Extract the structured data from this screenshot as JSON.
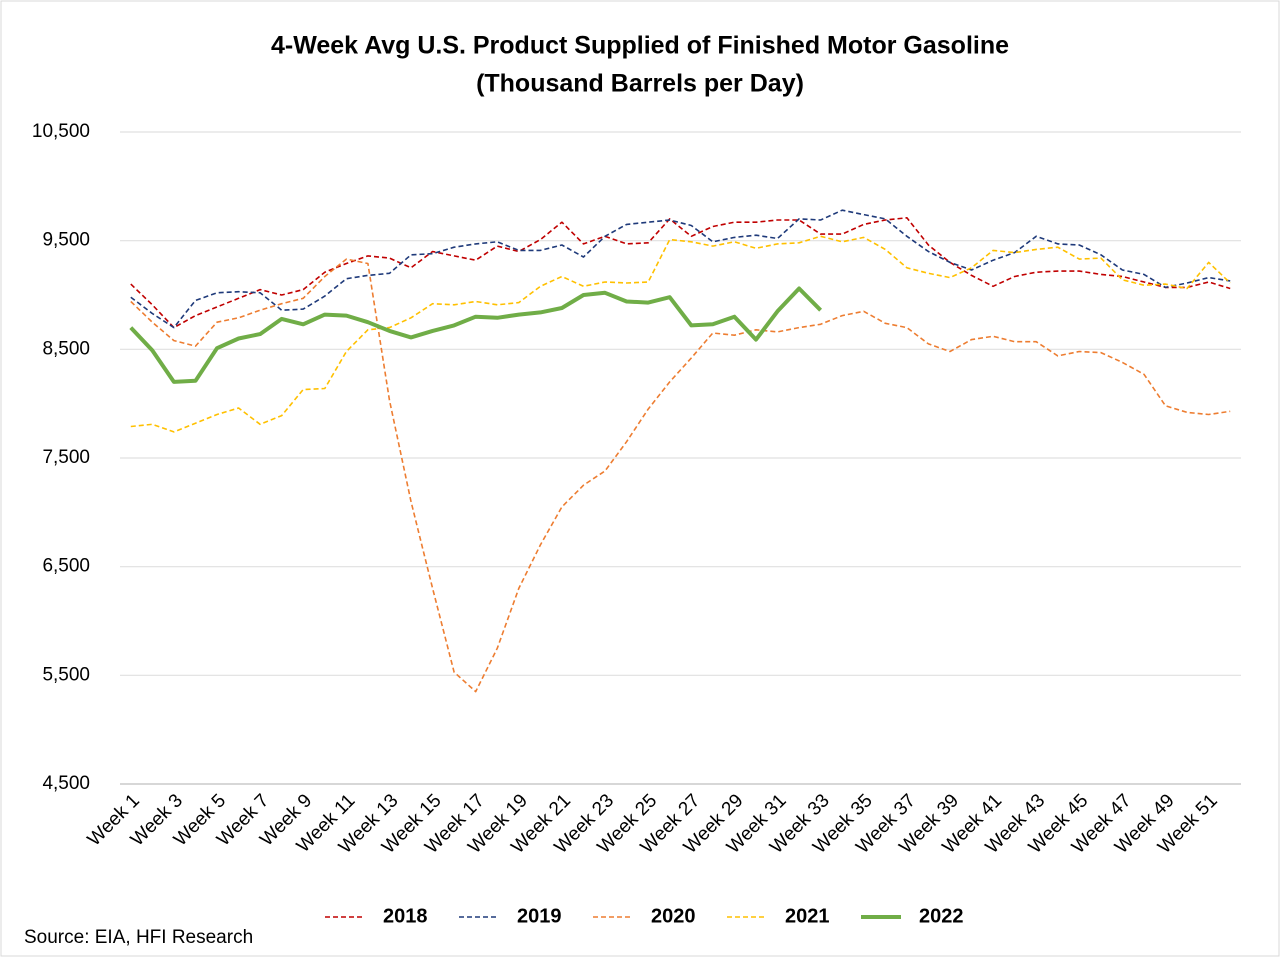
{
  "chart_data": {
    "type": "line",
    "title": "4-Week Avg U.S. Product Supplied of Finished Motor Gasoline",
    "subtitle": "(Thousand Barrels per Day)",
    "source": "Source: EIA, HFI Research",
    "categories": [
      "Week 1",
      null,
      "Week 3",
      null,
      "Week 5",
      null,
      "Week 7",
      null,
      "Week 9",
      null,
      "Week 11",
      null,
      "Week 13",
      null,
      "Week 15",
      null,
      "Week 17",
      null,
      "Week 19",
      null,
      "Week 21",
      null,
      "Week 23",
      null,
      "Week 25",
      null,
      "Week 27",
      null,
      "Week 29",
      null,
      "Week 31",
      null,
      "Week 33",
      null,
      "Week 35",
      null,
      "Week 37",
      null,
      "Week 39",
      null,
      "Week 41",
      null,
      "Week 43",
      null,
      "Week 45",
      null,
      "Week 47",
      null,
      "Week 49",
      null,
      "Week 51",
      null
    ],
    "ylim": [
      4500,
      10500
    ],
    "yticks": [
      {
        "value": 4500,
        "label": "4,500"
      },
      {
        "value": 5500,
        "label": "5,500"
      },
      {
        "value": 6500,
        "label": "6,500"
      },
      {
        "value": 7500,
        "label": "7,500"
      },
      {
        "value": 8500,
        "label": "8,500"
      },
      {
        "value": 9500,
        "label": "9,500"
      },
      {
        "value": 10500,
        "label": "10,500"
      }
    ],
    "grid": true,
    "legend": "bottom",
    "series": [
      {
        "name": "2018",
        "color": "#c00000",
        "line_style": "dashed",
        "values": [
          9100,
          8910,
          8700,
          8810,
          8890,
          8970,
          9050,
          9000,
          9050,
          9210,
          9290,
          9360,
          9340,
          9250,
          9400,
          9360,
          9320,
          9450,
          9400,
          9510,
          9670,
          9470,
          9540,
          9470,
          9480,
          9700,
          9540,
          9630,
          9670,
          9670,
          9690,
          9690,
          9560,
          9560,
          9650,
          9690,
          9710,
          9460,
          9300,
          9180,
          9080,
          9170,
          9210,
          9220,
          9220,
          9190,
          9170,
          9120,
          9070,
          9070,
          9120,
          9060
        ]
      },
      {
        "name": "2019",
        "color": "#1f3a7a",
        "line_style": "dashed",
        "values": [
          8980,
          8830,
          8700,
          8950,
          9020,
          9030,
          9020,
          8860,
          8870,
          8990,
          9150,
          9180,
          9200,
          9370,
          9380,
          9440,
          9470,
          9490,
          9410,
          9410,
          9460,
          9350,
          9540,
          9650,
          9670,
          9690,
          9640,
          9490,
          9530,
          9550,
          9520,
          9700,
          9690,
          9780,
          9740,
          9700,
          9540,
          9400,
          9300,
          9230,
          9320,
          9390,
          9540,
          9470,
          9460,
          9370,
          9230,
          9190,
          9070,
          9110,
          9160,
          9130
        ]
      },
      {
        "name": "2020",
        "color": "#ed7d31",
        "line_style": "dashed",
        "values": [
          8940,
          8750,
          8580,
          8530,
          8750,
          8790,
          8860,
          8920,
          8970,
          9170,
          9330,
          9290,
          8030,
          7100,
          6300,
          5530,
          5350,
          5750,
          6300,
          6700,
          7050,
          7250,
          7380,
          7650,
          7950,
          8200,
          8420,
          8650,
          8630,
          8680,
          8660,
          8700,
          8730,
          8810,
          8850,
          8740,
          8700,
          8550,
          8480,
          8590,
          8620,
          8570,
          8570,
          8440,
          8480,
          8470,
          8380,
          8270,
          7980,
          7920,
          7900,
          7930
        ]
      },
      {
        "name": "2021",
        "color": "#ffc000",
        "line_style": "dashed",
        "values": [
          7790,
          7810,
          7740,
          7820,
          7900,
          7960,
          7810,
          7890,
          8130,
          8140,
          8480,
          8680,
          8700,
          8790,
          8920,
          8910,
          8940,
          8910,
          8930,
          9080,
          9170,
          9080,
          9120,
          9110,
          9120,
          9510,
          9490,
          9450,
          9490,
          9430,
          9470,
          9480,
          9540,
          9490,
          9530,
          9420,
          9250,
          9200,
          9160,
          9250,
          9410,
          9390,
          9420,
          9440,
          9330,
          9340,
          9140,
          9090,
          9100,
          9060,
          9300,
          9110
        ]
      },
      {
        "name": "2022",
        "color": "#70ad47",
        "line_style": "solid",
        "values": [
          8700,
          8490,
          8200,
          8210,
          8510,
          8600,
          8640,
          8780,
          8730,
          8820,
          8810,
          8750,
          8670,
          8610,
          8670,
          8720,
          8800,
          8790,
          8820,
          8840,
          8880,
          9000,
          9020,
          8940,
          8930,
          8980,
          8720,
          8730,
          8800,
          8590,
          8850,
          9060,
          8860,
          null,
          null,
          null,
          null,
          null,
          null,
          null,
          null,
          null,
          null,
          null,
          null,
          null,
          null,
          null,
          null,
          null,
          null,
          null
        ]
      }
    ]
  }
}
